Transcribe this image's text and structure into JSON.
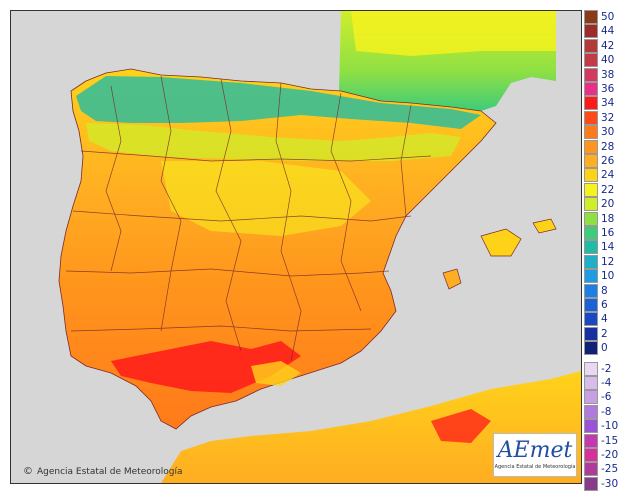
{
  "credit": {
    "symbol": "©",
    "text": "Agencia Estatal de Meteorología"
  },
  "logo": {
    "main": "AEmet",
    "sub": "Agencia Estatal de Meteorología"
  },
  "legend": [
    {
      "label": "50",
      "color": "#8a3a18"
    },
    {
      "label": "44",
      "color": "#9e2a2a"
    },
    {
      "label": "42",
      "color": "#b23a3a"
    },
    {
      "label": "40",
      "color": "#c43a48"
    },
    {
      "label": "38",
      "color": "#d23a5e"
    },
    {
      "label": "36",
      "color": "#e8308a"
    },
    {
      "label": "34",
      "color": "#ff1a1a"
    },
    {
      "label": "32",
      "color": "#ff4a18"
    },
    {
      "label": "30",
      "color": "#ff7a1a"
    },
    {
      "label": "28",
      "color": "#ff951c"
    },
    {
      "label": "26",
      "color": "#ffad22"
    },
    {
      "label": "24",
      "color": "#ffd21a"
    },
    {
      "label": "22",
      "color": "#f5f21e"
    },
    {
      "label": "20",
      "color": "#cfee2a"
    },
    {
      "label": "18",
      "color": "#8fe043"
    },
    {
      "label": "16",
      "color": "#3dcc7a"
    },
    {
      "label": "14",
      "color": "#22bba4"
    },
    {
      "label": "12",
      "color": "#1fb0c8"
    },
    {
      "label": "10",
      "color": "#1e9be2"
    },
    {
      "label": "8",
      "color": "#1d7fe6"
    },
    {
      "label": "6",
      "color": "#1b62d8"
    },
    {
      "label": "4",
      "color": "#1848c2"
    },
    {
      "label": "2",
      "color": "#1630a2"
    },
    {
      "label": "0",
      "color": "#101f78"
    },
    {
      "label": "-2",
      "color": "#e8d8f4"
    },
    {
      "label": "-4",
      "color": "#d8bcec"
    },
    {
      "label": "-6",
      "color": "#c89ee4"
    },
    {
      "label": "-8",
      "color": "#b07adc"
    },
    {
      "label": "-10",
      "color": "#9a52d6"
    },
    {
      "label": "-15",
      "color": "#c438b0"
    },
    {
      "label": "-20",
      "color": "#d8309a"
    },
    {
      "label": "-25",
      "color": "#b03a9a"
    },
    {
      "label": "-30",
      "color": "#8a3a8a"
    }
  ]
}
